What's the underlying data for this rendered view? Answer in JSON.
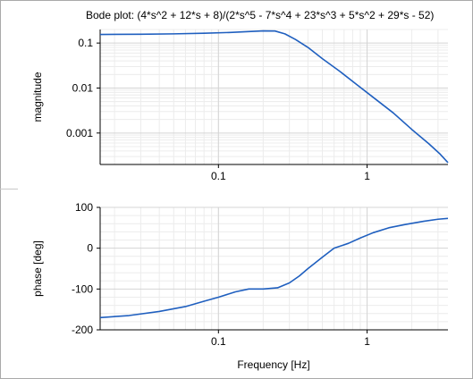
{
  "chart_data": {
    "type": "line",
    "title": "Bode plot: (4*s^2 + 12*s + 8)/(2*s^5 - 7*s^4 + 23*s^3 + 5*s^2 + 29*s - 52)",
    "xlabel": "Frequency [Hz]",
    "x_scale": "log",
    "xlim": [
      0.016,
      3.5
    ],
    "x_ticks": [
      0.1,
      1
    ],
    "x_tick_labels": [
      "0.1",
      "1"
    ],
    "line_color": "#1f5fbf",
    "grid": true,
    "panels": [
      {
        "name": "magnitude",
        "ylabel": "magnitude",
        "y_scale": "log",
        "ylim": [
          0.0002,
          0.2
        ],
        "y_ticks": [
          0.1,
          0.01,
          0.001
        ],
        "y_tick_labels": [
          "0.1",
          "0.01",
          "0.001"
        ],
        "series": [
          {
            "x": [
              0.016,
              0.03,
              0.05,
              0.08,
              0.12,
              0.16,
              0.2,
              0.24,
              0.28,
              0.33,
              0.4,
              0.5,
              0.65,
              0.85,
              1.1,
              1.5,
              2.0,
              2.6,
              3.1,
              3.5
            ],
            "values": [
              0.155,
              0.157,
              0.16,
              0.165,
              0.172,
              0.18,
              0.186,
              0.185,
              0.16,
              0.12,
              0.08,
              0.045,
              0.024,
              0.012,
              0.0062,
              0.0028,
              0.0012,
              0.00058,
              0.00034,
              0.00022
            ]
          }
        ]
      },
      {
        "name": "phase",
        "ylabel": "phase [deg]",
        "y_scale": "linear",
        "ylim": [
          -200,
          100
        ],
        "y_ticks": [
          100,
          0,
          -100,
          -200
        ],
        "y_tick_labels": [
          "100",
          "0",
          "-100",
          "-200"
        ],
        "series": [
          {
            "x": [
              0.016,
              0.025,
              0.04,
              0.06,
              0.08,
              0.1,
              0.13,
              0.16,
              0.2,
              0.25,
              0.3,
              0.35,
              0.4,
              0.5,
              0.6,
              0.75,
              0.9,
              1.1,
              1.4,
              1.8,
              2.4,
              3.0,
              3.5
            ],
            "values": [
              -170,
              -165,
              -155,
              -143,
              -130,
              -120,
              -107,
              -100,
              -100,
              -97,
              -85,
              -68,
              -50,
              -22,
              0,
              12,
              25,
              38,
              50,
              58,
              66,
              71,
              73
            ]
          }
        ]
      }
    ]
  }
}
